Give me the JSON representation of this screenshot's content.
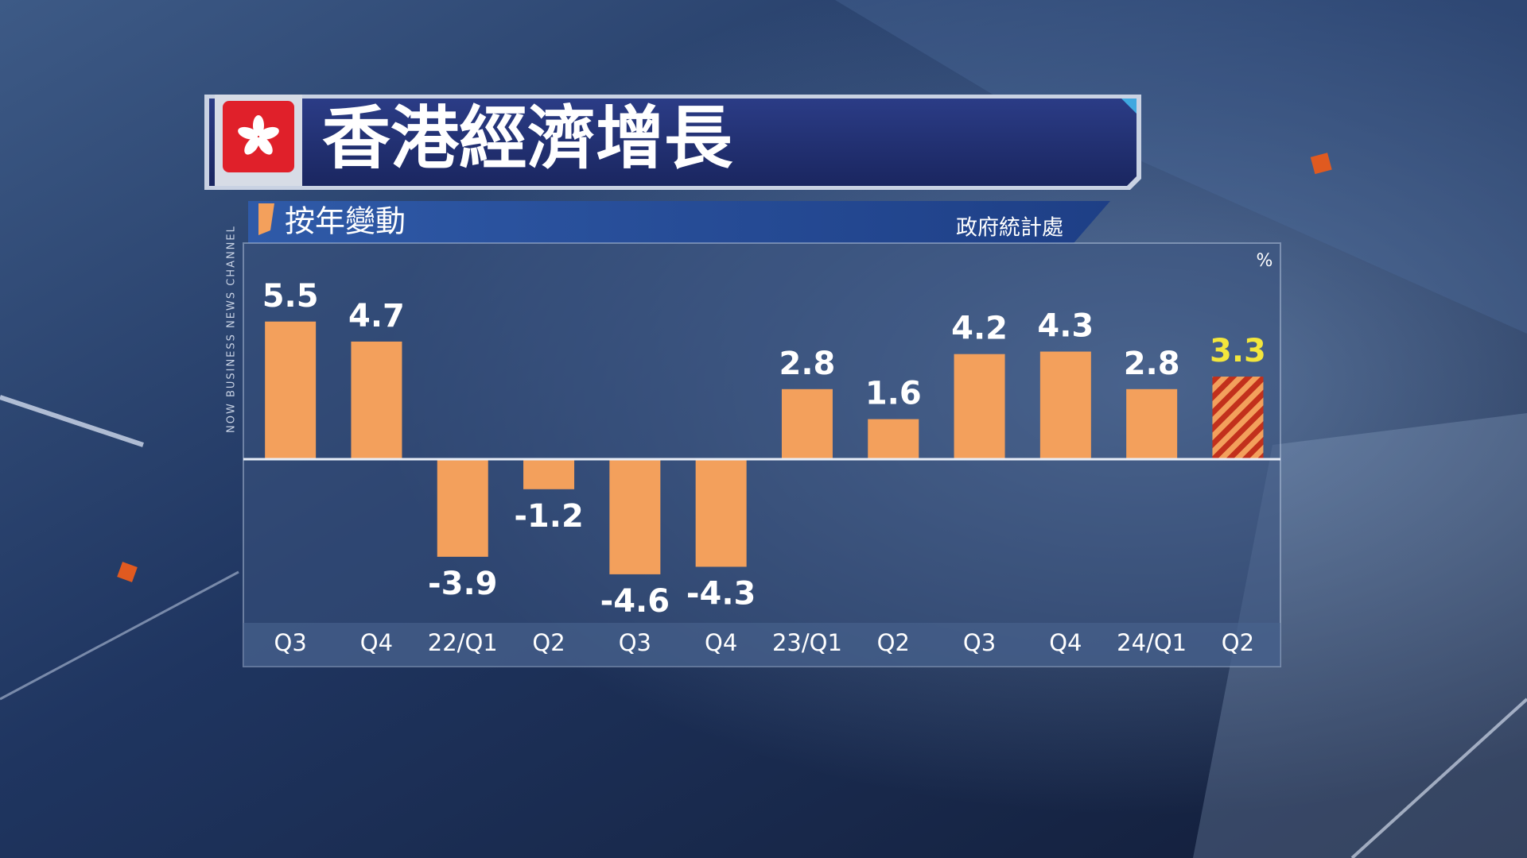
{
  "chart_data": {
    "type": "bar",
    "title": "香港經濟增長",
    "subtitle": "按年變動",
    "source": "政府統計處",
    "unit": "%",
    "channel": "NOW BUSINESS NEWS CHANNEL",
    "categories": [
      "Q3",
      "Q4",
      "22/Q1",
      "Q2",
      "Q3",
      "Q4",
      "23/Q1",
      "Q2",
      "Q3",
      "Q4",
      "24/Q1",
      "Q2"
    ],
    "values": [
      5.5,
      4.7,
      -3.9,
      -1.2,
      -4.6,
      -4.3,
      2.8,
      1.6,
      4.2,
      4.3,
      2.8,
      3.3
    ],
    "color": "#f3a05c",
    "hatch_color": "#c2301c",
    "bar_styles": [
      "solid",
      "solid",
      "solid",
      "solid",
      "solid",
      "solid",
      "solid",
      "solid",
      "solid",
      "solid",
      "solid",
      "hatched"
    ],
    "label_colors": [
      "#ffffff",
      "#ffffff",
      "#ffffff",
      "#ffffff",
      "#ffffff",
      "#ffffff",
      "#ffffff",
      "#ffffff",
      "#ffffff",
      "#ffffff",
      "#ffffff",
      "#f3e63c"
    ]
  }
}
